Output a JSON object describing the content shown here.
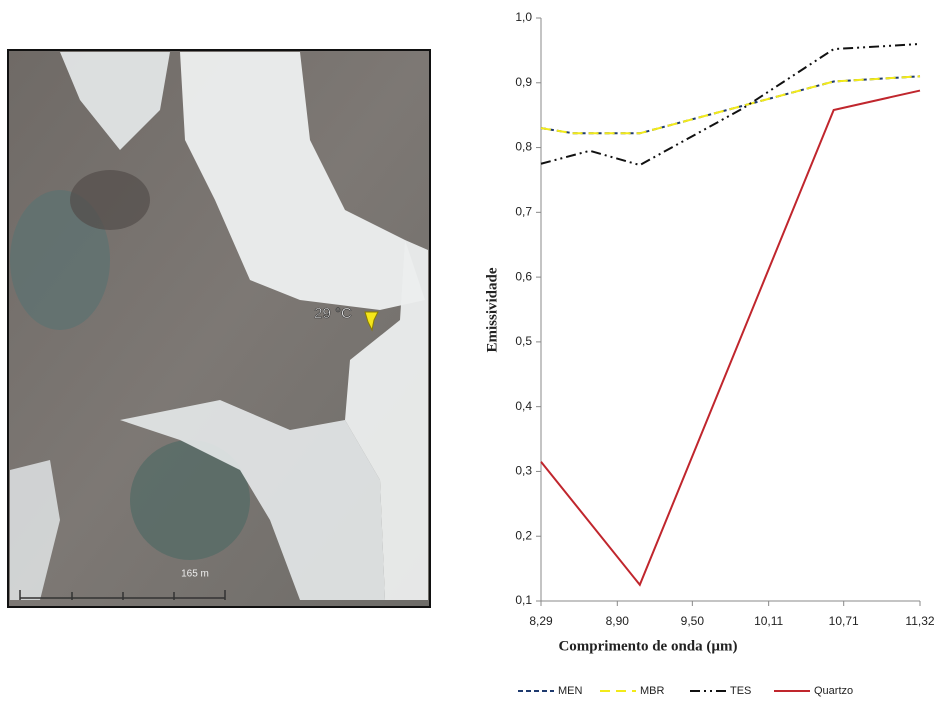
{
  "image": {
    "annotation": "29 °C",
    "scale_label": "165 m"
  },
  "chart_data": {
    "type": "line",
    "x_label": "Comprimento de onda (µm)",
    "y_label": "Emissividade",
    "xlim": [
      8.29,
      11.32
    ],
    "xticks": [
      {
        "value": 8.29,
        "label": "8,29"
      },
      {
        "value": 8.9,
        "label": "8,90"
      },
      {
        "value": 9.5,
        "label": "9,50"
      },
      {
        "value": 10.11,
        "label": "10,11"
      },
      {
        "value": 10.71,
        "label": "10,71"
      },
      {
        "value": 11.32,
        "label": "11,32"
      }
    ],
    "ylim": [
      0.1,
      1.0
    ],
    "yticks": [
      {
        "value": 0.1,
        "label": "0,1"
      },
      {
        "value": 0.2,
        "label": "0,2"
      },
      {
        "value": 0.3,
        "label": "0,3"
      },
      {
        "value": 0.4,
        "label": "0,4"
      },
      {
        "value": 0.5,
        "label": "0,5"
      },
      {
        "value": 0.6,
        "label": "0,6"
      },
      {
        "value": 0.7,
        "label": "0,7"
      },
      {
        "value": 0.8,
        "label": "0,8"
      },
      {
        "value": 0.9,
        "label": "0,9"
      },
      {
        "value": 1.0,
        "label": "1,0"
      }
    ],
    "grid": false,
    "series": [
      {
        "name": "MEN",
        "color": "#1f3a6e",
        "dash": "5,3",
        "x": [
          8.29,
          8.55,
          9.08,
          10.63,
          11.32
        ],
        "values": [
          0.83,
          0.822,
          0.822,
          0.902,
          0.91
        ]
      },
      {
        "name": "MBR",
        "color": "#f2ea1a",
        "dash": "10,6",
        "x": [
          8.29,
          8.55,
          9.08,
          10.63,
          11.32
        ],
        "values": [
          0.83,
          0.822,
          0.822,
          0.902,
          0.91
        ]
      },
      {
        "name": "TES",
        "color": "#111111",
        "dash": "10,4,2,4,2,4",
        "x": [
          8.29,
          8.68,
          9.08,
          9.9,
          10.63,
          10.9,
          11.32
        ],
        "values": [
          0.775,
          0.795,
          0.773,
          0.86,
          0.952,
          0.955,
          0.96
        ]
      },
      {
        "name": "Quartzo",
        "color": "#c0262d",
        "dash": "",
        "x": [
          8.29,
          9.08,
          10.63,
          11.32
        ],
        "values": [
          0.315,
          0.125,
          0.858,
          0.888
        ]
      }
    ]
  }
}
